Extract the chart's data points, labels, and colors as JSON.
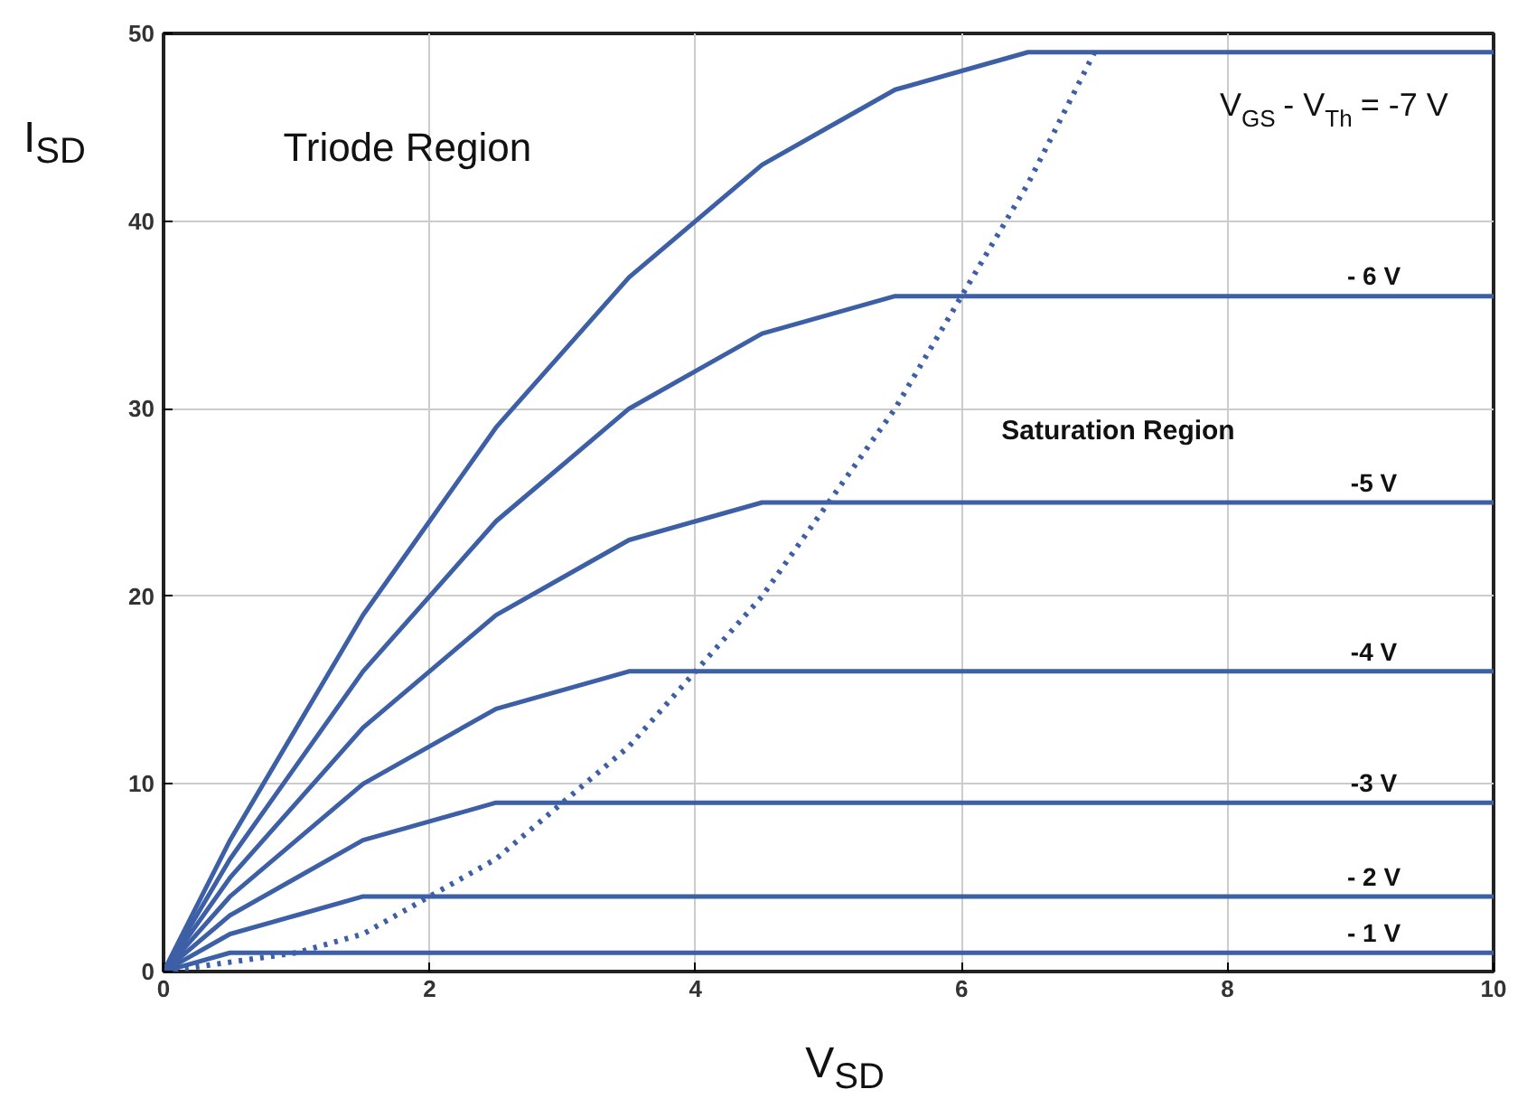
{
  "chart_data": {
    "type": "line",
    "xlabel": "V$_{SD}$",
    "ylabel": "I$_{SD}$",
    "xlim": [
      0,
      10
    ],
    "ylim": [
      0,
      50
    ],
    "xticks": [
      0,
      2,
      4,
      6,
      8,
      10
    ],
    "yticks": [
      0,
      10,
      20,
      30,
      40,
      50
    ],
    "grid": true,
    "marker": "none",
    "series": [
      {
        "color": "#3c5fa6",
        "x": [
          0,
          0.5,
          1,
          10
        ],
        "values": [
          0,
          1,
          1,
          1
        ]
      },
      {
        "color": "#3c5fa6",
        "x": [
          0,
          0.5,
          1,
          1.5,
          2,
          10
        ],
        "values": [
          0,
          2,
          3,
          4,
          4,
          4
        ]
      },
      {
        "color": "#3c5fa6",
        "x": [
          0,
          0.5,
          1,
          1.5,
          2,
          2.5,
          3,
          10
        ],
        "values": [
          0,
          3,
          5,
          7,
          8,
          9,
          9,
          9
        ]
      },
      {
        "color": "#3c5fa6",
        "x": [
          0,
          0.5,
          1,
          1.5,
          2,
          2.5,
          3,
          3.5,
          4,
          10
        ],
        "values": [
          0,
          4,
          7,
          10,
          12,
          14,
          15,
          16,
          16,
          16
        ]
      },
      {
        "color": "#3c5fa6",
        "x": [
          0,
          0.5,
          1,
          1.5,
          2,
          2.5,
          3,
          3.5,
          4,
          4.5,
          5,
          10
        ],
        "values": [
          0,
          5,
          9,
          13,
          16,
          19,
          21,
          23,
          24,
          25,
          25,
          25
        ]
      },
      {
        "color": "#3c5fa6",
        "x": [
          0,
          0.5,
          1,
          1.5,
          2,
          2.5,
          3,
          3.5,
          4,
          4.5,
          5,
          5.5,
          6,
          10
        ],
        "values": [
          0,
          6,
          11,
          16,
          20,
          24,
          27,
          30,
          32,
          34,
          35,
          36,
          36,
          36
        ]
      },
      {
        "color": "#3c5fa6",
        "x": [
          0,
          0.5,
          1,
          1.5,
          2,
          2.5,
          3,
          3.5,
          4,
          4.5,
          5,
          5.5,
          6,
          6.5,
          7,
          10
        ],
        "values": [
          0,
          7,
          13,
          19,
          24,
          29,
          33,
          37,
          40,
          43,
          45,
          47,
          48,
          49,
          49,
          49
        ]
      },
      {
        "color": "#3c5fa6",
        "line_style": "dotted",
        "x": [
          0,
          0.5,
          1,
          1.5,
          2,
          2.5,
          3,
          3.5,
          4,
          4.5,
          5,
          5.5,
          6,
          6.5,
          7
        ],
        "values": [
          0,
          0.5,
          1,
          2,
          4,
          6,
          9,
          12,
          16,
          20,
          25,
          30,
          36,
          42,
          49
        ]
      }
    ],
    "annotations": [
      "Triode Region",
      "Saturation Region",
      "V$_{GS}$ - V$_{Th}$ = -7 V",
      "- 6 V",
      "-5 V",
      "-4 V",
      "-3 V",
      "- 2 V",
      "- 1 V"
    ]
  }
}
